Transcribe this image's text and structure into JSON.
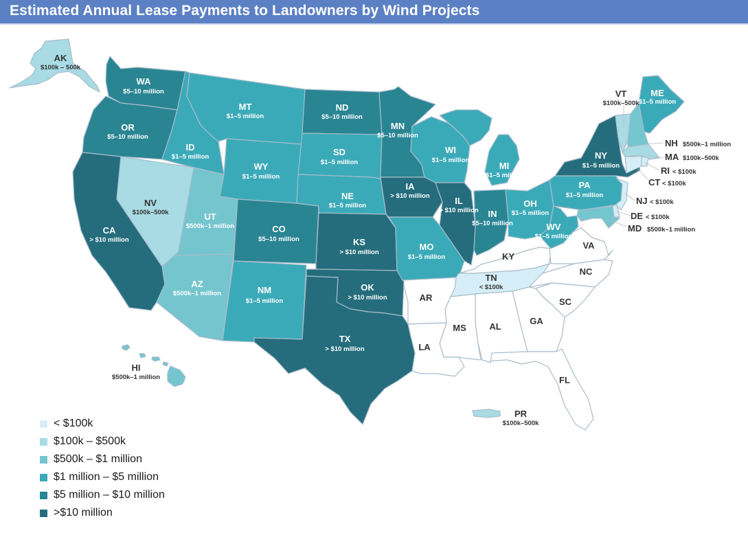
{
  "title": "Estimated Annual Lease Payments to Landowners by Wind Projects",
  "colors": {
    "lt100k": "#d6eef8",
    "k100_500": "#a8dbe4",
    "k500_1m": "#75c5cf",
    "m1_5": "#3baab8",
    "m5_10": "#2a8593",
    "gt10m": "#256d7c",
    "none": "#ffffff",
    "border": "#a9bccb"
  },
  "legend": [
    {
      "label": "< $100k",
      "color": "#d6eef8"
    },
    {
      "label": "$100k – $500k",
      "color": "#a8dbe4"
    },
    {
      "label": "$500k – $1 million",
      "color": "#75c5cf"
    },
    {
      "label": "$1 million – $5 million",
      "color": "#3baab8"
    },
    {
      "label": "$5 million – $10 million",
      "color": "#2a8593"
    },
    {
      "label": ">$10 million",
      "color": "#256d7c"
    }
  ],
  "states": [
    {
      "code": "AK",
      "value": "$100k – 500k",
      "category": "$100k – $500k"
    },
    {
      "code": "WA",
      "value": "$5–10 million",
      "category": "$5 million – $10 million"
    },
    {
      "code": "OR",
      "value": "$5–10 million",
      "category": "$5 million – $10 million"
    },
    {
      "code": "CA",
      "value": "> $10 million",
      "category": ">$10 million"
    },
    {
      "code": "NV",
      "value": "$100k–500k",
      "category": "$100k – $500k"
    },
    {
      "code": "ID",
      "value": "$1–5 million",
      "category": "$1 million – $5 million"
    },
    {
      "code": "MT",
      "value": "$1–5 million",
      "category": "$1 million – $5 million"
    },
    {
      "code": "WY",
      "value": "$1–5 million",
      "category": "$1 million – $5 million"
    },
    {
      "code": "UT",
      "value": "$500k–1 million",
      "category": "$500k – $1 million"
    },
    {
      "code": "AZ",
      "value": "$500k–1 million",
      "category": "$500k – $1 million"
    },
    {
      "code": "CO",
      "value": "$5–10 million",
      "category": "$5 million – $10 million"
    },
    {
      "code": "NM",
      "value": "$1–5 million",
      "category": "$1 million – $5 million"
    },
    {
      "code": "ND",
      "value": "$5–10 million",
      "category": "$5 million – $10 million"
    },
    {
      "code": "SD",
      "value": "$1–5 million",
      "category": "$1 million – $5 million"
    },
    {
      "code": "NE",
      "value": "$1–5 million",
      "category": "$1 million – $5 million"
    },
    {
      "code": "KS",
      "value": "> $10 million",
      "category": ">$10 million"
    },
    {
      "code": "OK",
      "value": "> $10 million",
      "category": ">$10 million"
    },
    {
      "code": "TX",
      "value": "> $10 million",
      "category": ">$10 million"
    },
    {
      "code": "MN",
      "value": "$5–10 million",
      "category": "$5 million – $10 million"
    },
    {
      "code": "IA",
      "value": "> $10 million",
      "category": ">$10 million"
    },
    {
      "code": "MO",
      "value": "$1–5 million",
      "category": "$1 million – $5 million"
    },
    {
      "code": "WI",
      "value": "$1–5 million",
      "category": "$1 million – $5 million"
    },
    {
      "code": "IL",
      "value": "> $10 million",
      "category": ">$10 million"
    },
    {
      "code": "MI",
      "value": "$1–5 million",
      "category": "$1 million – $5 million"
    },
    {
      "code": "IN",
      "value": "$5–10 million",
      "category": "$5 million – $10 million"
    },
    {
      "code": "OH",
      "value": "$1–5 million",
      "category": "$1 million – $5 million"
    },
    {
      "code": "PA",
      "value": "$1–5 million",
      "category": "$1 million – $5 million"
    },
    {
      "code": "WV",
      "value": "$1–5 million",
      "category": "$1 million – $5 million"
    },
    {
      "code": "NY",
      "value": "$1–5 million",
      "category": "$1 million – $5 million"
    },
    {
      "code": "VT",
      "value": "$100k–500k",
      "category": "$100k – $500k"
    },
    {
      "code": "NH",
      "value": "$500k–1 million",
      "category": "$500k – $1 million"
    },
    {
      "code": "ME",
      "value": "$1–5 million",
      "category": "$1 million – $5 million"
    },
    {
      "code": "MA",
      "value": "$100k–500k",
      "category": "$100k – $500k"
    },
    {
      "code": "RI",
      "value": "< $100k",
      "category": "< $100k"
    },
    {
      "code": "CT",
      "value": "< $100k",
      "category": "< $100k"
    },
    {
      "code": "NJ",
      "value": "< $100k",
      "category": "< $100k"
    },
    {
      "code": "DE",
      "value": "< $100k",
      "category": "< $100k"
    },
    {
      "code": "MD",
      "value": "$500k–1 million",
      "category": "$500k – $1 million"
    },
    {
      "code": "TN",
      "value": "< $100k",
      "category": "< $100k"
    },
    {
      "code": "HI",
      "value": "$500k–1 million",
      "category": "$500k – $1 million"
    },
    {
      "code": "PR",
      "value": "$100k–500k",
      "category": "$100k – $500k"
    }
  ],
  "unlabeled_states": [
    "KY",
    "VA",
    "NC",
    "SC",
    "GA",
    "FL",
    "AL",
    "MS",
    "AR",
    "LA"
  ]
}
